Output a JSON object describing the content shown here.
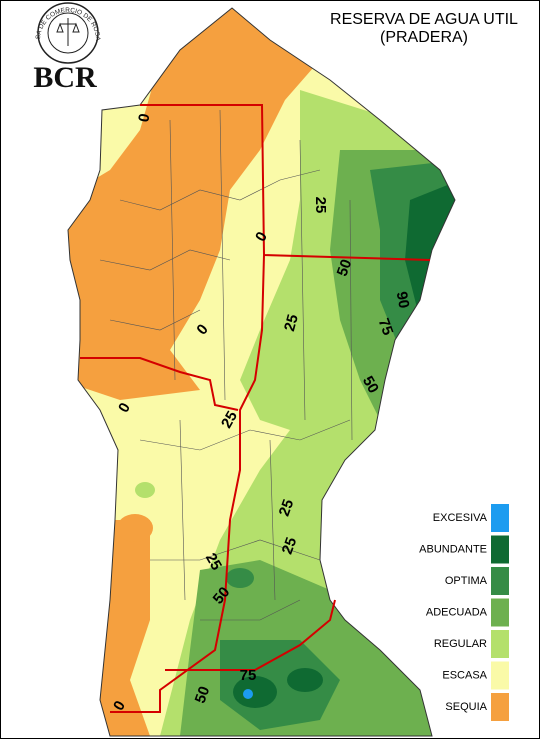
{
  "header": {
    "title": "RESERVA DE AGUA UTIL",
    "subtitle": "(PRADERA)",
    "logo_ring": "BOLSA DE COMERCIO DE ROSARIO",
    "logo_text": "BCR"
  },
  "legend": [
    {
      "label": "EXCESIVA",
      "color": "#1c9cf0"
    },
    {
      "label": "ABUNDANTE",
      "color": "#0f6a32"
    },
    {
      "label": "OPTIMA",
      "color": "#358c46"
    },
    {
      "label": "ADECUADA",
      "color": "#6db04f"
    },
    {
      "label": "REGULAR",
      "color": "#b4e06c"
    },
    {
      "label": "ESCASA",
      "color": "#fafaa8"
    },
    {
      "label": "SEQUIA",
      "color": "#f5a03f"
    }
  ],
  "contour_labels": [
    "0",
    "25",
    "0",
    "50",
    "90",
    "25",
    "75",
    "0",
    "50",
    "0",
    "25",
    "25",
    "25",
    "25",
    "50",
    "75",
    "50",
    "0"
  ]
}
